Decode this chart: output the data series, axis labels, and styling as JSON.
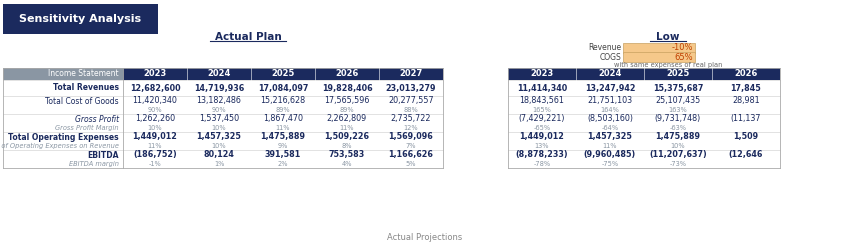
{
  "title_box_text": "Sensitivity Analysis",
  "title_box_color": "#1B2A5E",
  "title_text_color": "#FFFFFF",
  "section1_title": "Actual Plan",
  "section2_title": "Low",
  "low_revenue_label": "Revenue",
  "low_cogs_label": "COGS",
  "low_revenue_val": "-10%",
  "low_cogs_val": "65%",
  "low_note": "with same expenses of real plan",
  "low_box_color": "#F5C88A",
  "low_box_border": "#C8A060",
  "header_bg": "#1B2A5E",
  "header_text": "#FFFFFF",
  "row_label_bg": "#8A96A3",
  "body_text": "#1B2A5E",
  "subtext_color": "#8A96A3",
  "years_actual": [
    "2023",
    "2024",
    "2025",
    "2026",
    "2027"
  ],
  "years_low": [
    "2023",
    "2024",
    "2025",
    "2026"
  ],
  "actual_data": {
    "Total Revenues": [
      "12,682,600",
      "14,719,936",
      "17,084,097",
      "19,828,406",
      "23,013,279"
    ],
    "Total Cost of Goods": [
      "11,420,340",
      "13,182,486",
      "15,216,628",
      "17,565,596",
      "20,277,557"
    ],
    "cogs_pct": [
      "90%",
      "90%",
      "89%",
      "89%",
      "88%"
    ],
    "Gross Profit": [
      "1,262,260",
      "1,537,450",
      "1,867,470",
      "2,262,809",
      "2,735,722"
    ],
    "gross_pct": [
      "10%",
      "10%",
      "11%",
      "11%",
      "12%"
    ],
    "Total Operating Expenses": [
      "1,449,012",
      "1,457,325",
      "1,475,889",
      "1,509,226",
      "1,569,096"
    ],
    "opex_pct": [
      "11%",
      "10%",
      "9%",
      "8%",
      "7%"
    ],
    "EBITDA": [
      "(186,752)",
      "80,124",
      "391,581",
      "753,583",
      "1,166,626"
    ],
    "ebitda_pct": [
      "-1%",
      "1%",
      "2%",
      "4%",
      "5%"
    ]
  },
  "low_data": {
    "Total Revenues": [
      "11,414,340",
      "13,247,942",
      "15,375,687",
      "17,845"
    ],
    "Total Cost of Goods": [
      "18,843,561",
      "21,751,103",
      "25,107,435",
      "28,981"
    ],
    "cogs_pct": [
      "165%",
      "164%",
      "163%",
      ""
    ],
    "Gross Profit": [
      "(7,429,221)",
      "(8,503,160)",
      "(9,731,748)",
      "(11,137"
    ],
    "gross_pct": [
      "-65%",
      "-64%",
      "-63%",
      ""
    ],
    "Total Operating Expenses": [
      "1,449,012",
      "1,457,325",
      "1,475,889",
      "1,509"
    ],
    "opex_pct": [
      "13%",
      "11%",
      "10%",
      ""
    ],
    "EBITDA": [
      "(8,878,233)",
      "(9,960,485)",
      "(11,207,637)",
      "(12,646"
    ],
    "ebitda_pct": [
      "-78%",
      "-75%",
      "-73%",
      ""
    ]
  },
  "bottom_label": "Actual Projections"
}
